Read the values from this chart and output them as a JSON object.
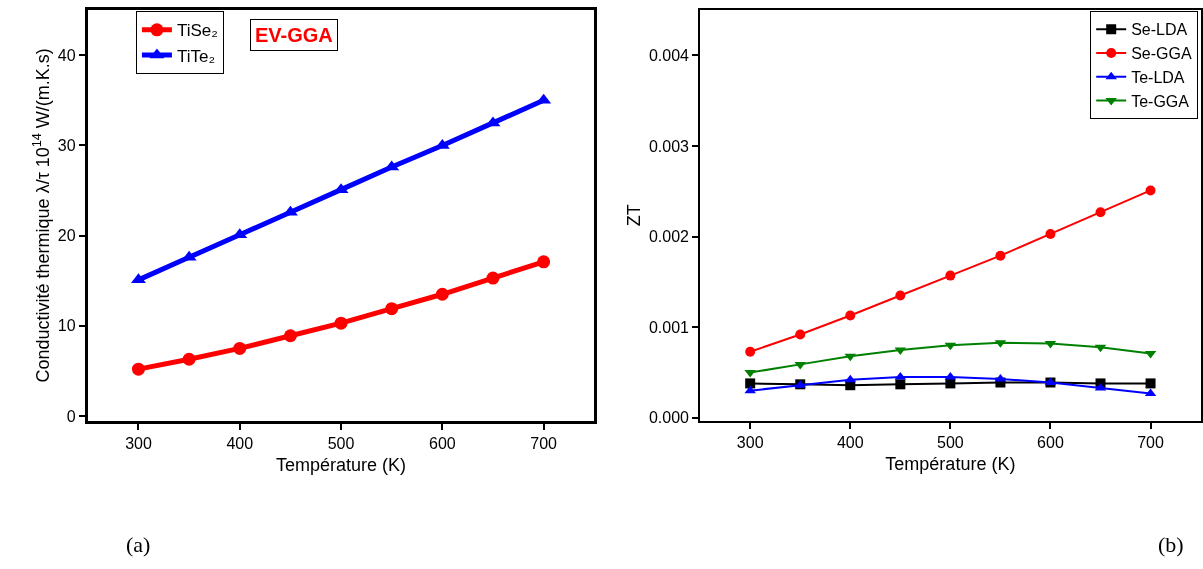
{
  "chart_data": [
    {
      "type": "line",
      "xlabel": "Température (K)",
      "ylabel": "Conductivité thermique λ/τ 10$^{14}$ W/(m.K.s)",
      "x": [
        300,
        350,
        400,
        450,
        500,
        550,
        600,
        650,
        700
      ],
      "series": [
        {
          "name": "TiSe₂",
          "color": "#ff0000",
          "marker": "circle",
          "values": [
            5.2,
            6.3,
            7.5,
            8.9,
            10.3,
            11.9,
            13.5,
            15.3,
            17.1
          ]
        },
        {
          "name": "TiTe₂",
          "color": "#0000ff",
          "marker": "triangle",
          "values": [
            15.1,
            17.6,
            20.1,
            22.6,
            25.1,
            27.6,
            30.0,
            32.5,
            35.0
          ]
        }
      ],
      "xlim": [
        250,
        750
      ],
      "ylim": [
        -0.5,
        45
      ],
      "xticks": [
        300,
        400,
        500,
        600,
        700
      ],
      "yticks": [
        0,
        10,
        20,
        30,
        40
      ],
      "legend": "top left",
      "line_style": "solid",
      "annotations": [
        "EV-GGA",
        "(a)"
      ]
    },
    {
      "type": "line",
      "xlabel": "Température (K)",
      "ylabel": "ZT",
      "x": [
        300,
        350,
        400,
        450,
        500,
        550,
        600,
        650,
        700
      ],
      "series": [
        {
          "name": "Se-LDA",
          "color": "#000000",
          "marker": "square",
          "values": [
            0.00038,
            0.00037,
            0.00036,
            0.00037,
            0.00038,
            0.00039,
            0.00039,
            0.00038,
            0.00038
          ]
        },
        {
          "name": "Se-GGA",
          "color": "#ff0000",
          "marker": "circle",
          "values": [
            0.00073,
            0.00092,
            0.00113,
            0.00135,
            0.00157,
            0.00179,
            0.00203,
            0.00227,
            0.00251
          ]
        },
        {
          "name": "Te-LDA",
          "color": "#0000ff",
          "marker": "triangle",
          "values": [
            0.0003,
            0.00036,
            0.00042,
            0.00045,
            0.00045,
            0.00043,
            0.00039,
            0.00033,
            0.00027
          ]
        },
        {
          "name": "Te-GGA",
          "color": "#008000",
          "marker": "triangle-down",
          "values": [
            0.0005,
            0.00059,
            0.00068,
            0.00075,
            0.0008,
            0.00083,
            0.00082,
            0.00078,
            0.00071
          ]
        }
      ],
      "xlim": [
        250,
        750
      ],
      "ylim": [
        -3e-05,
        0.0045
      ],
      "xticks": [
        300,
        400,
        500,
        600,
        700
      ],
      "yticks": [
        {
          "value": 0,
          "label": "0.000"
        },
        {
          "value": 0.001,
          "label": "0.001"
        },
        {
          "value": 0.002,
          "label": "0.002"
        },
        {
          "value": 0.003,
          "label": "0.003"
        },
        {
          "value": 0.004,
          "label": "0.004"
        }
      ],
      "legend": "top right",
      "line_style": "solid",
      "annotations": [
        "(b)"
      ]
    }
  ]
}
